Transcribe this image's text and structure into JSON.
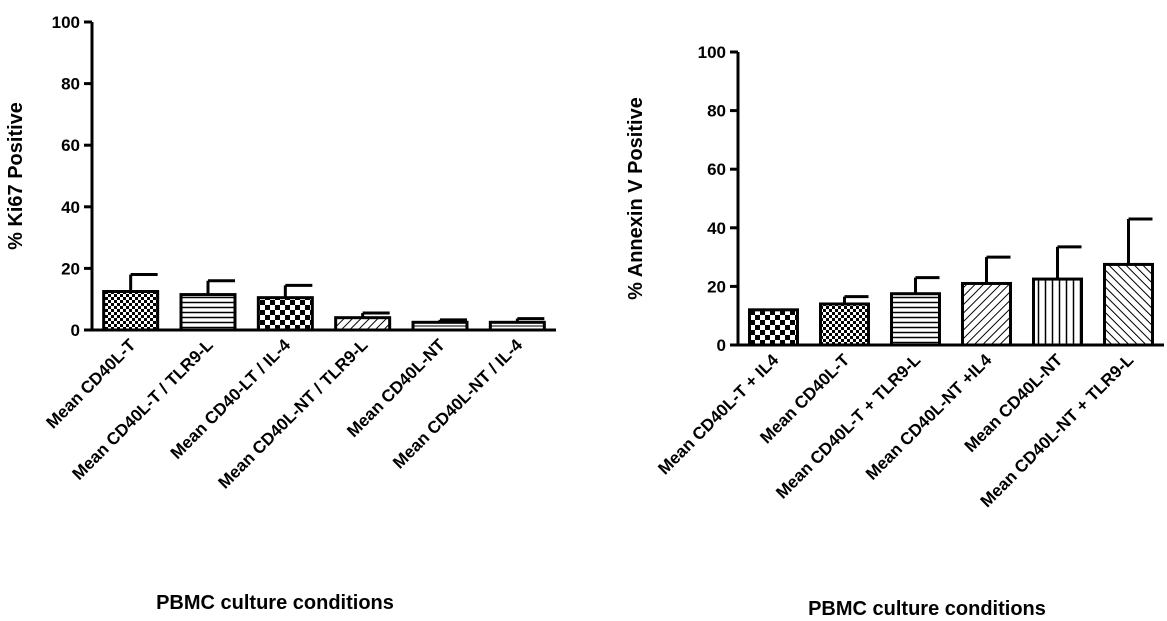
{
  "chart_data": [
    {
      "type": "bar",
      "title": "",
      "xlabel": "PBMC culture conditions",
      "ylabel": "% Ki67 Positive",
      "ylim": [
        0,
        100
      ],
      "yticks": [
        "0",
        "20",
        "40",
        "60",
        "80",
        "100"
      ],
      "grid": false,
      "categories": [
        "Mean CD40L-T",
        "Mean CD40L-T / TLR9-L",
        "Mean CD40-LT / IL-4",
        "Mean CD40L-NT / TLR9-L",
        "Mean CD40L-NT",
        "Mean CD40L-NT / IL-4"
      ],
      "values": [
        12.5,
        11.5,
        10.5,
        4.0,
        2.5,
        2.5
      ],
      "errors": [
        5.5,
        4.5,
        4.0,
        1.5,
        0.8,
        1.2
      ],
      "patterns": [
        "checker",
        "hlines",
        "checker-large",
        "diag-right",
        "hlines-sparse",
        "hlines-sparse"
      ]
    },
    {
      "type": "bar",
      "title": "",
      "xlabel": "PBMC culture conditions",
      "ylabel": "% Annexin V Positive",
      "ylim": [
        0,
        100
      ],
      "yticks": [
        "0",
        "20",
        "40",
        "60",
        "80",
        "100"
      ],
      "grid": false,
      "categories": [
        "Mean CD40L-T + IL4",
        "Mean CD40L-T",
        "Mean CD40L-T + TLR9-L",
        "Mean CD40L-NT +IL4",
        "Mean CD40L-NT",
        "Mean CD40L-NT + TLR9-L"
      ],
      "values": [
        12.0,
        14.0,
        17.5,
        21.0,
        22.5,
        27.5
      ],
      "errors": [
        0,
        2.5,
        5.5,
        9.0,
        11.0,
        15.5
      ],
      "patterns": [
        "checker-large",
        "checker",
        "hlines",
        "diag-right",
        "vlines",
        "diag-left"
      ]
    }
  ]
}
